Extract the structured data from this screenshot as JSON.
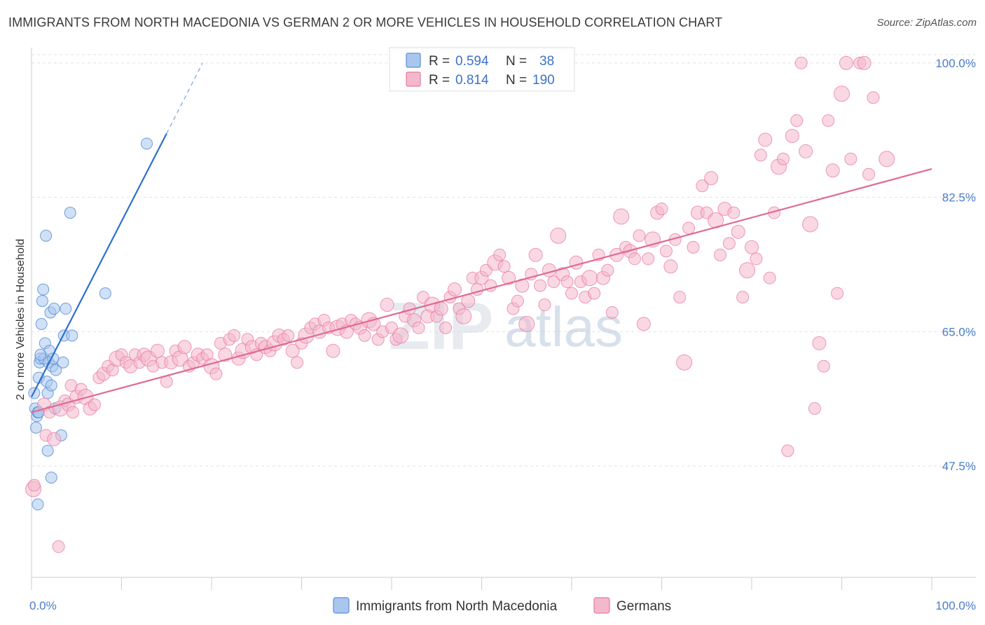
{
  "title": "IMMIGRANTS FROM NORTH MACEDONIA VS GERMAN 2 OR MORE VEHICLES IN HOUSEHOLD CORRELATION CHART",
  "source": "Source: ZipAtlas.com",
  "watermark": {
    "zip": "ZIP",
    "atlas": "atlas"
  },
  "colors": {
    "blue": "#5b8fd6",
    "blue_fill": "#a9c6ef",
    "pink": "#e8799f",
    "pink_fill": "#f4b8cc",
    "tick": "#4a7cc9",
    "grid": "#dde2ea"
  },
  "legend": {
    "rows": [
      {
        "r_label": "R =",
        "r_value": "0.594",
        "n_label": "N =",
        "n_value": "38"
      },
      {
        "r_label": "R =",
        "r_value": "0.814",
        "n_label": "N =",
        "n_value": "190"
      }
    ]
  },
  "bottom_legend": [
    "Immigrants from North Macedonia",
    "Germans"
  ],
  "chart_data": {
    "type": "scatter",
    "ylabel": "2 or more Vehicles in Household",
    "xlim": [
      0,
      100
    ],
    "ylim": [
      33,
      102
    ],
    "y_ticks": [
      {
        "value": 47.5,
        "label": "47.5%"
      },
      {
        "value": 65.0,
        "label": "65.0%"
      },
      {
        "value": 82.5,
        "label": "82.5%"
      },
      {
        "value": 100.0,
        "label": "100.0%"
      }
    ],
    "x_tick_labels": [
      {
        "value": 0,
        "label": "0.0%"
      },
      {
        "value": 100,
        "label": "100.0%"
      }
    ],
    "series": [
      {
        "name": "Immigrants from North Macedonia",
        "trend": {
          "x": [
            0.0,
            15.0
          ],
          "y": [
            56.5,
            90.8
          ],
          "dashed_to": [
            19.0,
            100.0
          ]
        },
        "points": [
          [
            0.3,
            57
          ],
          [
            0.4,
            55
          ],
          [
            0.5,
            52.5
          ],
          [
            0.6,
            54
          ],
          [
            0.7,
            54.5
          ],
          [
            0.8,
            59
          ],
          [
            0.9,
            61
          ],
          [
            1.0,
            61.5
          ],
          [
            1.1,
            66
          ],
          [
            1.2,
            69
          ],
          [
            1.3,
            70.5
          ],
          [
            1.4,
            61.5
          ],
          [
            1.5,
            63.5
          ],
          [
            1.6,
            77.5
          ],
          [
            1.7,
            58.5
          ],
          [
            1.8,
            57
          ],
          [
            1.9,
            61
          ],
          [
            2.0,
            62.5
          ],
          [
            2.1,
            67.5
          ],
          [
            2.2,
            58
          ],
          [
            2.3,
            60.5
          ],
          [
            2.4,
            61.5
          ],
          [
            2.5,
            68
          ],
          [
            2.6,
            55
          ],
          [
            2.7,
            60
          ],
          [
            2.2,
            46
          ],
          [
            1.8,
            49.5
          ],
          [
            0.7,
            42.5
          ],
          [
            0.8,
            54.5
          ],
          [
            3.3,
            51.5
          ],
          [
            3.5,
            61
          ],
          [
            3.6,
            64.5
          ],
          [
            3.8,
            68
          ],
          [
            4.5,
            64.5
          ],
          [
            4.3,
            80.5
          ],
          [
            8.2,
            70
          ],
          [
            12.8,
            89.5
          ],
          [
            1.0,
            62.0
          ]
        ]
      },
      {
        "name": "Germans",
        "trend": {
          "x": [
            0.0,
            100.0
          ],
          "y": [
            54.5,
            86.2
          ]
        },
        "points": [
          [
            0.2,
            44.5
          ],
          [
            0.3,
            45
          ],
          [
            3.0,
            37
          ],
          [
            1.4,
            55.5
          ],
          [
            1.6,
            51.5
          ],
          [
            2.0,
            54.5
          ],
          [
            2.5,
            51
          ],
          [
            3.2,
            55
          ],
          [
            3.7,
            56
          ],
          [
            4.1,
            55.5
          ],
          [
            4.4,
            58
          ],
          [
            4.6,
            54.5
          ],
          [
            5.0,
            56.5
          ],
          [
            5.5,
            57.5
          ],
          [
            6.0,
            56.5
          ],
          [
            6.5,
            55
          ],
          [
            7.0,
            55.5
          ],
          [
            7.5,
            59
          ],
          [
            8.0,
            59.5
          ],
          [
            8.5,
            60.5
          ],
          [
            9.0,
            60
          ],
          [
            9.5,
            61.5
          ],
          [
            10.0,
            62
          ],
          [
            10.5,
            61
          ],
          [
            11.0,
            60.5
          ],
          [
            11.5,
            62
          ],
          [
            12.0,
            61
          ],
          [
            12.5,
            62
          ],
          [
            13.0,
            61.5
          ],
          [
            13.5,
            60.5
          ],
          [
            14.0,
            62.5
          ],
          [
            14.5,
            61
          ],
          [
            15.0,
            58.5
          ],
          [
            15.5,
            61
          ],
          [
            16.0,
            62.5
          ],
          [
            16.5,
            61.5
          ],
          [
            17.0,
            63
          ],
          [
            17.5,
            60.5
          ],
          [
            18.0,
            61
          ],
          [
            18.5,
            62
          ],
          [
            19.0,
            61.5
          ],
          [
            19.5,
            62
          ],
          [
            20.0,
            60.5
          ],
          [
            20.5,
            59.5
          ],
          [
            21.0,
            63.5
          ],
          [
            21.5,
            62
          ],
          [
            22.0,
            64
          ],
          [
            22.5,
            64.5
          ],
          [
            23.0,
            61.5
          ],
          [
            23.5,
            62.5
          ],
          [
            24.0,
            64
          ],
          [
            24.5,
            63
          ],
          [
            25.0,
            62
          ],
          [
            25.5,
            63.5
          ],
          [
            26.0,
            63
          ],
          [
            26.5,
            62.5
          ],
          [
            27.0,
            63.5
          ],
          [
            27.5,
            64.5
          ],
          [
            28.0,
            64
          ],
          [
            28.5,
            64.5
          ],
          [
            29.0,
            62.5
          ],
          [
            29.5,
            61
          ],
          [
            30.0,
            63.5
          ],
          [
            30.5,
            64.5
          ],
          [
            31.0,
            65.5
          ],
          [
            31.5,
            66
          ],
          [
            32.0,
            65
          ],
          [
            32.5,
            66.5
          ],
          [
            33.0,
            65.5
          ],
          [
            33.5,
            62.5
          ],
          [
            34.0,
            65.5
          ],
          [
            34.5,
            66
          ],
          [
            35.0,
            65
          ],
          [
            35.5,
            66.5
          ],
          [
            36.0,
            66
          ],
          [
            36.5,
            65.5
          ],
          [
            37.0,
            64.5
          ],
          [
            37.5,
            66.5
          ],
          [
            38.0,
            66
          ],
          [
            38.5,
            64
          ],
          [
            39.0,
            65
          ],
          [
            39.5,
            68.5
          ],
          [
            40.0,
            65.5
          ],
          [
            40.5,
            64
          ],
          [
            41.0,
            64.5
          ],
          [
            41.5,
            67
          ],
          [
            42.0,
            68
          ],
          [
            42.5,
            66.5
          ],
          [
            43.0,
            65.5
          ],
          [
            43.5,
            69.5
          ],
          [
            44.0,
            67
          ],
          [
            44.5,
            68.5
          ],
          [
            45.0,
            67
          ],
          [
            45.5,
            68
          ],
          [
            46.0,
            65.5
          ],
          [
            46.5,
            69.5
          ],
          [
            47.0,
            70.5
          ],
          [
            47.5,
            68
          ],
          [
            48.0,
            67
          ],
          [
            48.5,
            69
          ],
          [
            49.0,
            72
          ],
          [
            49.5,
            70.5
          ],
          [
            50.0,
            72
          ],
          [
            50.5,
            73
          ],
          [
            51.0,
            71
          ],
          [
            51.5,
            74
          ],
          [
            52.0,
            75
          ],
          [
            52.5,
            73.5
          ],
          [
            53.0,
            72
          ],
          [
            53.5,
            68
          ],
          [
            54.0,
            69
          ],
          [
            54.5,
            71
          ],
          [
            55.0,
            66
          ],
          [
            55.5,
            72.5
          ],
          [
            56.0,
            75
          ],
          [
            56.5,
            71
          ],
          [
            57.0,
            68.5
          ],
          [
            57.5,
            73
          ],
          [
            58.0,
            71.5
          ],
          [
            58.5,
            77.5
          ],
          [
            59.0,
            72.5
          ],
          [
            59.5,
            71.5
          ],
          [
            60.0,
            70
          ],
          [
            60.5,
            74
          ],
          [
            61.0,
            71.5
          ],
          [
            61.5,
            69.5
          ],
          [
            62.0,
            72
          ],
          [
            62.5,
            70
          ],
          [
            63.0,
            75
          ],
          [
            63.5,
            72
          ],
          [
            64.0,
            73
          ],
          [
            64.5,
            67.5
          ],
          [
            65.0,
            75
          ],
          [
            65.5,
            80
          ],
          [
            66.0,
            76
          ],
          [
            66.5,
            75.5
          ],
          [
            67.0,
            74.5
          ],
          [
            67.5,
            77.5
          ],
          [
            68.0,
            66
          ],
          [
            68.5,
            74.5
          ],
          [
            69.0,
            77
          ],
          [
            69.5,
            80.5
          ],
          [
            70.0,
            81
          ],
          [
            70.5,
            75.5
          ],
          [
            71.0,
            73.5
          ],
          [
            71.5,
            77
          ],
          [
            72.0,
            69.5
          ],
          [
            72.5,
            61
          ],
          [
            73.0,
            78.5
          ],
          [
            73.5,
            76
          ],
          [
            74.0,
            80.5
          ],
          [
            74.5,
            84
          ],
          [
            75.0,
            80.5
          ],
          [
            75.5,
            85
          ],
          [
            76.0,
            79.5
          ],
          [
            76.5,
            75
          ],
          [
            77.0,
            81
          ],
          [
            77.5,
            76.5
          ],
          [
            78.0,
            80.5
          ],
          [
            78.5,
            78
          ],
          [
            79.0,
            69.5
          ],
          [
            79.5,
            73
          ],
          [
            80.0,
            76
          ],
          [
            80.5,
            74.5
          ],
          [
            81.0,
            88
          ],
          [
            81.5,
            90
          ],
          [
            82.0,
            72
          ],
          [
            82.5,
            80.5
          ],
          [
            83.0,
            86.5
          ],
          [
            83.5,
            87.5
          ],
          [
            84.0,
            49.5
          ],
          [
            84.5,
            90.5
          ],
          [
            85.0,
            92.5
          ],
          [
            85.5,
            100
          ],
          [
            86.0,
            88.5
          ],
          [
            86.5,
            79
          ],
          [
            87.0,
            55
          ],
          [
            87.5,
            63.5
          ],
          [
            88.0,
            60.5
          ],
          [
            88.5,
            92.5
          ],
          [
            89.0,
            86
          ],
          [
            89.5,
            70
          ],
          [
            90.0,
            96
          ],
          [
            90.5,
            100
          ],
          [
            91.0,
            87.5
          ],
          [
            92.0,
            100
          ],
          [
            92.5,
            100
          ],
          [
            93.0,
            85.5
          ],
          [
            93.5,
            95.5
          ],
          [
            95.0,
            87.5
          ]
        ]
      }
    ]
  }
}
